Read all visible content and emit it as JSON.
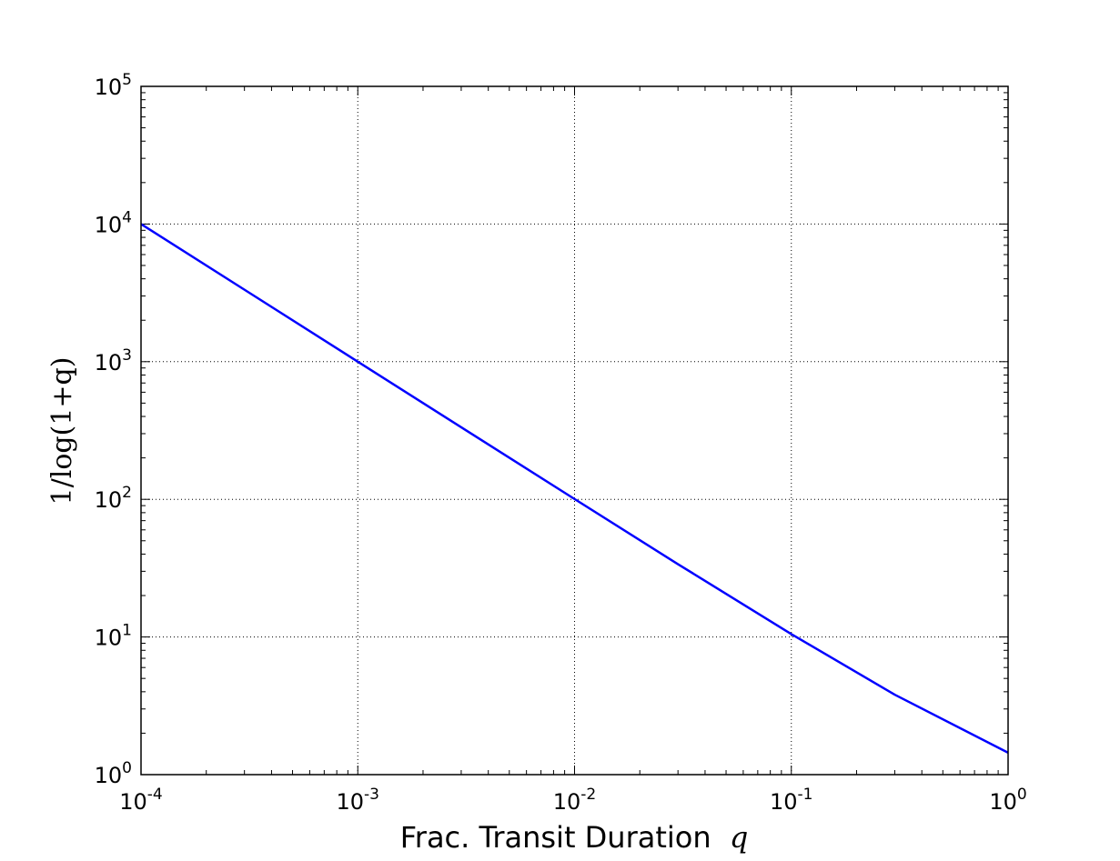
{
  "chart_data": {
    "type": "line",
    "title": "",
    "xlabel": "Frac. Transit Duration",
    "xlabel_symbol": "q",
    "ylabel": "1/log(1+q)",
    "xscale": "log",
    "yscale": "log",
    "xlim": [
      0.0001,
      1
    ],
    "ylim": [
      1,
      100000
    ],
    "grid": true,
    "x_ticks": [
      {
        "base": "10",
        "exp": "-4"
      },
      {
        "base": "10",
        "exp": "-3"
      },
      {
        "base": "10",
        "exp": "-2"
      },
      {
        "base": "10",
        "exp": "-1"
      },
      {
        "base": "10",
        "exp": "0"
      }
    ],
    "y_ticks": [
      {
        "base": "10",
        "exp": "0"
      },
      {
        "base": "10",
        "exp": "1"
      },
      {
        "base": "10",
        "exp": "2"
      },
      {
        "base": "10",
        "exp": "3"
      },
      {
        "base": "10",
        "exp": "4"
      },
      {
        "base": "10",
        "exp": "5"
      }
    ],
    "series": [
      {
        "name": "1/log(1+q)",
        "color": "#0000ff",
        "x": [
          0.0001,
          0.0003,
          0.001,
          0.003,
          0.01,
          0.03,
          0.1,
          0.3,
          1
        ],
        "y": [
          10000.5,
          3333.8,
          1000.5,
          333.8,
          100.5,
          33.8,
          10.49,
          3.81,
          1.443
        ]
      }
    ]
  }
}
